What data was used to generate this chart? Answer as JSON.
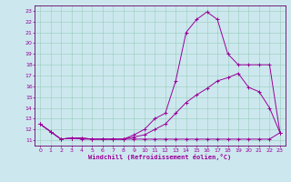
{
  "xlabel": "Windchill (Refroidissement éolien,°C)",
  "bg_color": "#cce8ee",
  "grid_color": "#99ccbb",
  "line_color": "#990099",
  "spine_color": "#660066",
  "xlim": [
    -0.5,
    23.5
  ],
  "ylim": [
    10.5,
    23.5
  ],
  "xticks": [
    0,
    1,
    2,
    3,
    4,
    5,
    6,
    7,
    8,
    9,
    10,
    11,
    12,
    13,
    14,
    15,
    16,
    17,
    18,
    19,
    20,
    21,
    22,
    23
  ],
  "yticks": [
    11,
    12,
    13,
    14,
    15,
    16,
    17,
    18,
    19,
    20,
    21,
    22,
    23
  ],
  "line1_x": [
    0,
    1,
    2,
    3,
    4,
    5,
    6,
    7,
    8,
    9,
    10,
    11,
    12,
    13,
    14,
    15,
    16,
    17,
    18,
    19,
    20,
    21,
    22,
    23
  ],
  "line1_y": [
    12.5,
    11.8,
    11.1,
    11.2,
    11.1,
    11.1,
    11.1,
    11.1,
    11.1,
    11.1,
    11.1,
    11.1,
    11.1,
    11.1,
    11.1,
    11.1,
    11.1,
    11.1,
    11.1,
    11.1,
    11.1,
    11.1,
    11.1,
    11.7
  ],
  "line2_x": [
    0,
    1,
    2,
    3,
    4,
    5,
    6,
    7,
    8,
    9,
    10,
    11,
    12,
    13,
    14,
    15,
    16,
    17,
    18,
    19,
    20,
    21,
    22,
    23
  ],
  "line2_y": [
    12.5,
    11.8,
    11.1,
    11.2,
    11.2,
    11.1,
    11.1,
    11.1,
    11.1,
    11.3,
    11.5,
    12.0,
    12.5,
    13.5,
    14.5,
    15.2,
    15.8,
    16.5,
    16.8,
    17.2,
    15.9,
    15.5,
    14.0,
    11.7
  ],
  "line3_x": [
    0,
    1,
    2,
    3,
    4,
    5,
    6,
    7,
    8,
    9,
    10,
    11,
    12,
    13,
    14,
    15,
    16,
    17,
    18,
    19,
    20,
    21,
    22,
    23
  ],
  "line3_y": [
    12.5,
    11.8,
    11.1,
    11.2,
    11.2,
    11.1,
    11.1,
    11.1,
    11.1,
    11.5,
    12.0,
    13.0,
    13.5,
    16.5,
    21.0,
    22.2,
    22.9,
    22.2,
    19.0,
    18.0,
    18.0,
    18.0,
    18.0,
    11.7
  ]
}
